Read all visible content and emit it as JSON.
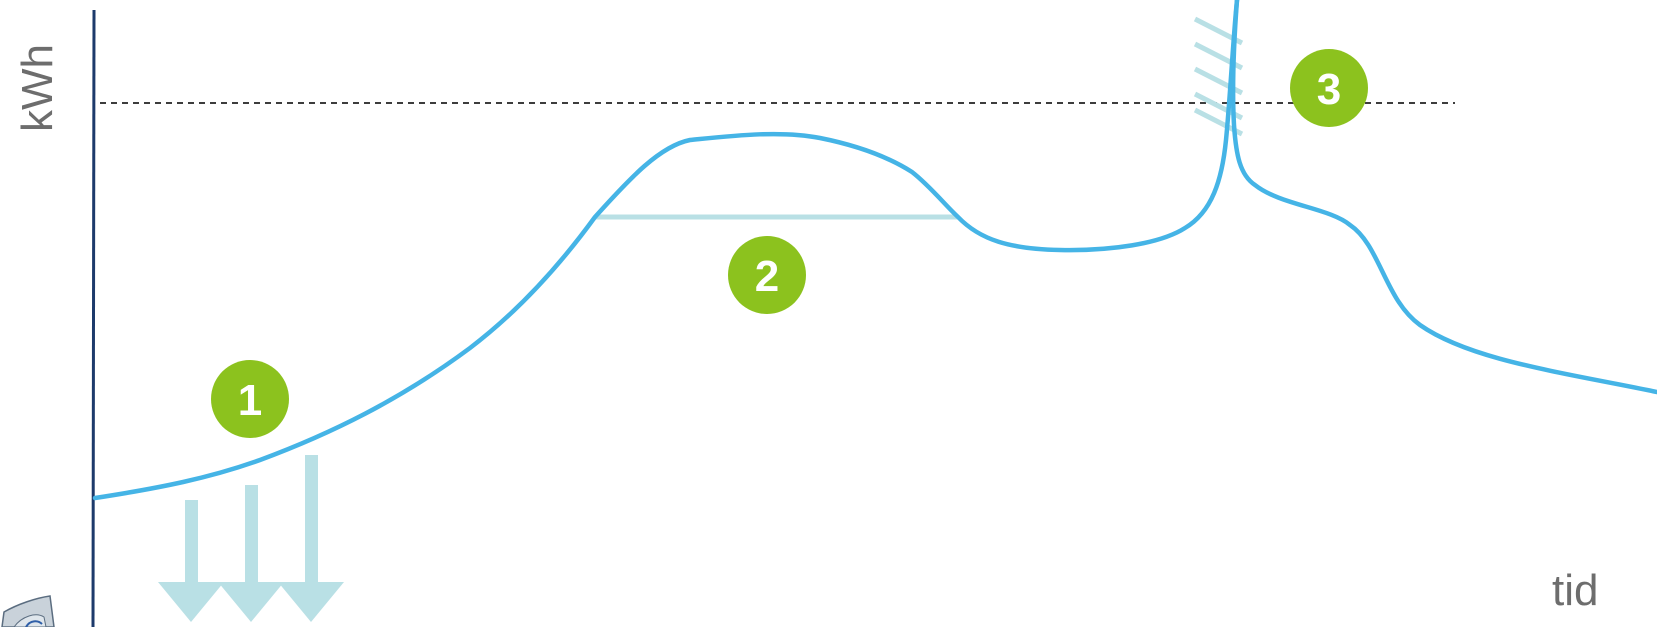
{
  "axes": {
    "y_label": "kWh",
    "x_label": "tid"
  },
  "markers": [
    {
      "label": "1"
    },
    {
      "label": "2"
    },
    {
      "label": "3"
    }
  ],
  "colors": {
    "curve": "#45b4e6",
    "axis": "#1d3a6b",
    "reference_line": "#222222",
    "marker_fill": "#8cc21e",
    "marker_text": "#ffffff",
    "annotation": "#b9e0e5",
    "label_text": "#6d6d6d"
  }
}
